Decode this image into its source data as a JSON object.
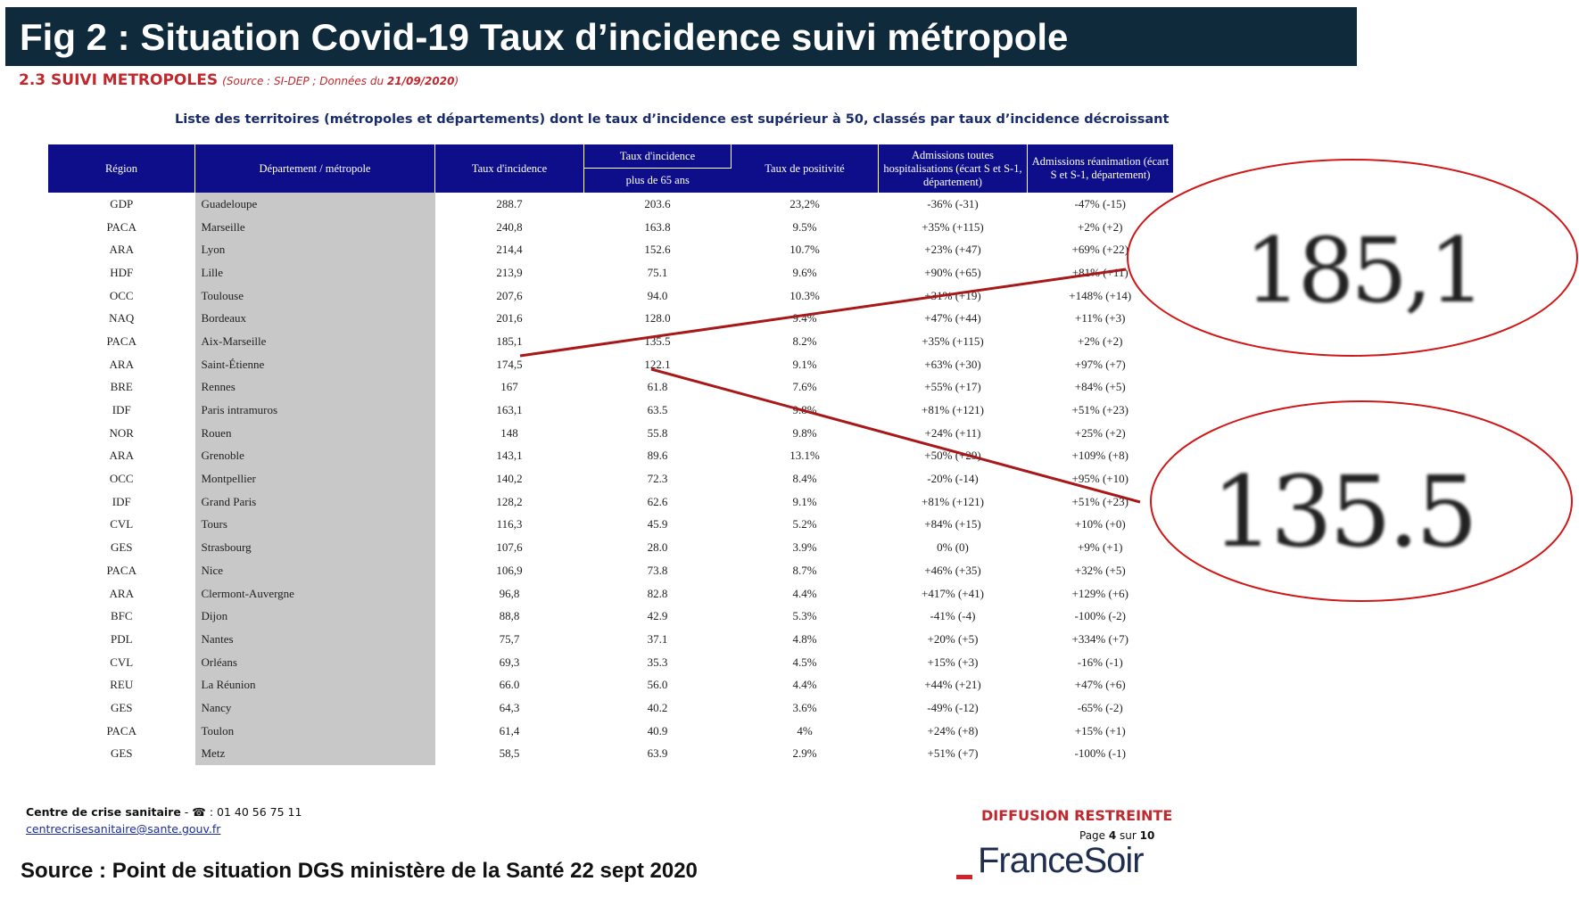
{
  "title": "Fig 2 : Situation Covid-19 Taux d’incidence suivi métropole",
  "section": {
    "heading": "2.3 SUIVI METROPOLES",
    "source_prefix": "(Source : SI-DEP ; Données du ",
    "source_date": "21/09/2020",
    "source_suffix": ")"
  },
  "subtitle": "Liste des territoires (métropoles et départements) dont le taux d’incidence est supérieur à 50, classés par taux d’incidence décroissant",
  "table": {
    "headers": {
      "region": "Région",
      "dept": "Département / métropole",
      "incidence": "Taux d'incidence",
      "incidence65_top": "Taux d'incidence",
      "incidence65_bottom": "plus de 65 ans",
      "positivity": "Taux de positivité",
      "hosp": "Admissions toutes hospitalisations (écart S et S-1, département)",
      "rea": "Admissions réanimation (écart S et S-1, département)"
    },
    "rows": [
      [
        "GDP",
        "Guadeloupe",
        "288.7",
        "203.6",
        "23,2%",
        "-36% (-31)",
        "-47% (-15)"
      ],
      [
        "PACA",
        "Marseille",
        "240,8",
        "163.8",
        "9.5%",
        "+35% (+115)",
        "+2% (+2)"
      ],
      [
        "ARA",
        "Lyon",
        "214,4",
        "152.6",
        "10.7%",
        "+23% (+47)",
        "+69% (+22)"
      ],
      [
        "HDF",
        "Lille",
        "213,9",
        "75.1",
        "9.6%",
        "+90% (+65)",
        "+81% (+11)"
      ],
      [
        "OCC",
        "Toulouse",
        "207,6",
        "94.0",
        "10.3%",
        "+31% (+19)",
        "+148% (+14)"
      ],
      [
        "NAQ",
        "Bordeaux",
        "201,6",
        "128.0",
        "9.4%",
        "+47% (+44)",
        "+11% (+3)"
      ],
      [
        "PACA",
        "Aix-Marseille",
        "185,1",
        "135.5",
        "8.2%",
        "+35% (+115)",
        "+2% (+2)"
      ],
      [
        "ARA",
        "Saint-Étienne",
        "174,5",
        "122.1",
        "9.1%",
        "+63% (+30)",
        "+97% (+7)"
      ],
      [
        "BRE",
        "Rennes",
        "167",
        "61.8",
        "7.6%",
        "+55% (+17)",
        "+84% (+5)"
      ],
      [
        "IDF",
        "Paris intramuros",
        "163,1",
        "63.5",
        "9.8%",
        "+81% (+121)",
        "+51% (+23)"
      ],
      [
        "NOR",
        "Rouen",
        "148",
        "55.8",
        "9.8%",
        "+24% (+11)",
        "+25% (+2)"
      ],
      [
        "ARA",
        "Grenoble",
        "143,1",
        "89.6",
        "13.1%",
        "+50% (+29)",
        "+109% (+8)"
      ],
      [
        "OCC",
        "Montpellier",
        "140,2",
        "72.3",
        "8.4%",
        "-20% (-14)",
        "+95% (+10)"
      ],
      [
        "IDF",
        "Grand Paris",
        "128,2",
        "62.6",
        "9.1%",
        "+81% (+121)",
        "+51% (+23)"
      ],
      [
        "CVL",
        "Tours",
        "116,3",
        "45.9",
        "5.2%",
        "+84% (+15)",
        "+10% (+0)"
      ],
      [
        "GES",
        "Strasbourg",
        "107,6",
        "28.0",
        "3.9%",
        "0% (0)",
        "+9% (+1)"
      ],
      [
        "PACA",
        "Nice",
        "106,9",
        "73.8",
        "8.7%",
        "+46% (+35)",
        "+32% (+5)"
      ],
      [
        "ARA",
        "Clermont-Auvergne",
        "96,8",
        "82.8",
        "4.4%",
        "+417% (+41)",
        "+129% (+6)"
      ],
      [
        "BFC",
        "Dijon",
        "88,8",
        "42.9",
        "5.3%",
        "-41% (-4)",
        "-100% (-2)"
      ],
      [
        "PDL",
        "Nantes",
        "75,7",
        "37.1",
        "4.8%",
        "+20% (+5)",
        "+334% (+7)"
      ],
      [
        "CVL",
        "Orléans",
        "69,3",
        "35.3",
        "4.5%",
        "+15% (+3)",
        "-16% (-1)"
      ],
      [
        "REU",
        "La Réunion",
        "66.0",
        "56.0",
        "4.4%",
        "+44% (+21)",
        "+47% (+6)"
      ],
      [
        "GES",
        "Nancy",
        "64,3",
        "40.2",
        "3.6%",
        "-49% (-12)",
        "-65% (-2)"
      ],
      [
        "PACA",
        "Toulon",
        "61,4",
        "40.9",
        "4%",
        "+24% (+8)",
        "+15% (+1)"
      ],
      [
        "GES",
        "Metz",
        "58,5",
        "63.9",
        "2.9%",
        "+51% (+7)",
        "-100% (-1)"
      ]
    ]
  },
  "callouts": [
    {
      "text": "185,1"
    },
    {
      "text": "135.5"
    }
  ],
  "footer": {
    "contact_label": "Centre de crise sanitaire",
    "contact_phone": " - ☎ : 01 40 56 75 11",
    "email": "centrecrisesanitaire@sante.gouv.fr",
    "diffusion": "DIFFUSION RESTREINTE",
    "page_prefix": "Page ",
    "page_current": "4",
    "page_mid": " sur ",
    "page_total": "10",
    "source": "Source : Point de situation DGS ministère de la Santé 22 sept 2020",
    "logo": "FranceSoir"
  },
  "colors": {
    "title_bg": "#0e2a3b",
    "header_bg": "#0e0e8a",
    "dept_bg": "#c8c8c8",
    "accent_red": "#c0282e",
    "annotation_red": "#a81818"
  }
}
